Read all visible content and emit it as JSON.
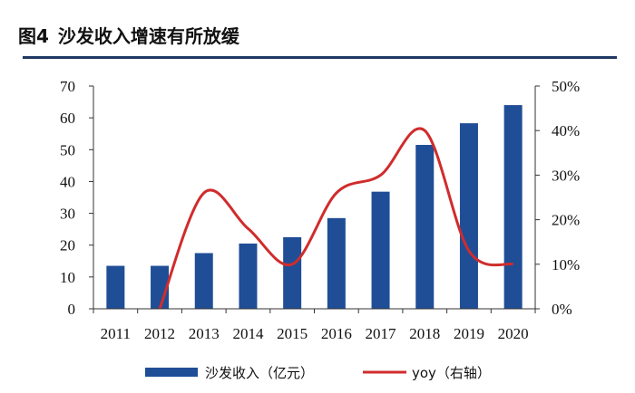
{
  "figure": {
    "number": "图4",
    "title": "沙发收入增速有所放缓"
  },
  "colors": {
    "bar": "#1f4e96",
    "line": "#d02c2c",
    "title_rule": "#1f3864"
  },
  "chart_data": {
    "type": "bar",
    "categories": [
      "2011",
      "2012",
      "2013",
      "2014",
      "2015",
      "2016",
      "2017",
      "2018",
      "2019",
      "2020"
    ],
    "series": [
      {
        "name": "沙发收入（亿元）",
        "type": "bar",
        "axis": "left",
        "values": [
          13.5,
          13.5,
          17.5,
          20.5,
          22.5,
          28.5,
          36.8,
          51.5,
          58.3,
          64.0
        ]
      },
      {
        "name": "yoy（右轴）",
        "type": "line",
        "axis": "right",
        "values": [
          null,
          0,
          26,
          18,
          10,
          26,
          30,
          40,
          13,
          10
        ]
      }
    ],
    "y_left": {
      "min": 0,
      "max": 70,
      "ticks": [
        "0",
        "10",
        "20",
        "30",
        "40",
        "50",
        "60",
        "70"
      ]
    },
    "y_right": {
      "min": 0,
      "max": 50,
      "ticks": [
        "0%",
        "10%",
        "20%",
        "30%",
        "40%",
        "50%"
      ]
    },
    "legend": {
      "placement": "bottom"
    },
    "grid": false
  }
}
